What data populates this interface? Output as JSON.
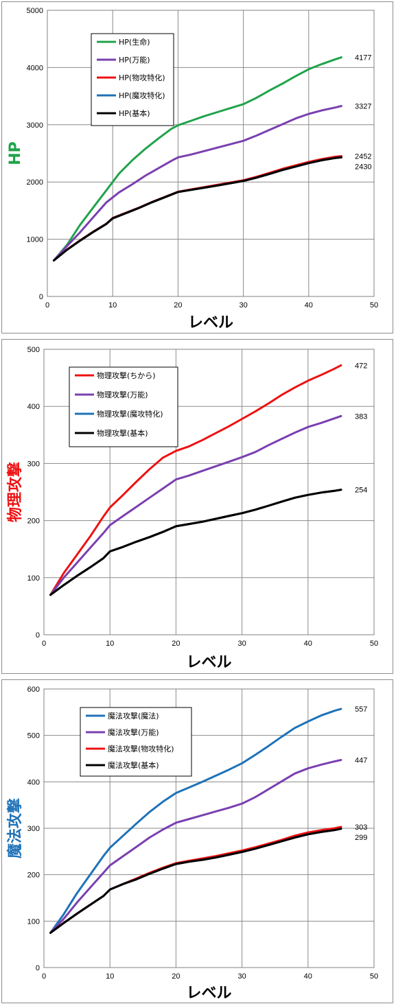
{
  "chart_data": [
    {
      "type": "line",
      "ylabel": "HP",
      "ylabel_color": "#1fa34a",
      "xlabel": "レベル",
      "xlim": [
        0,
        50
      ],
      "ylim": [
        0,
        5000
      ],
      "xticks": [
        0,
        10,
        20,
        30,
        40,
        50
      ],
      "yticks": [
        0,
        1000,
        2000,
        3000,
        4000,
        5000
      ],
      "grid": true,
      "legend": "top-left",
      "series": [
        {
          "name": "HP(生命)",
          "color": "#1fa34a",
          "end_label": "4177",
          "x": [
            1,
            3,
            5,
            7,
            9,
            11,
            13,
            15,
            17,
            19,
            20,
            22,
            24,
            26,
            28,
            30,
            32,
            34,
            36,
            38,
            40,
            42,
            44,
            45
          ],
          "y": [
            630,
            900,
            1250,
            1550,
            1850,
            2150,
            2380,
            2580,
            2760,
            2930,
            2990,
            3070,
            3150,
            3220,
            3290,
            3360,
            3470,
            3600,
            3720,
            3850,
            3970,
            4060,
            4140,
            4177
          ]
        },
        {
          "name": "HP(万能)",
          "color": "#7a3fb0",
          "end_label": "3327",
          "x": [
            1,
            3,
            5,
            7,
            9,
            11,
            13,
            15,
            17,
            19,
            20,
            22,
            24,
            26,
            28,
            30,
            32,
            34,
            36,
            38,
            40,
            42,
            44,
            45
          ],
          "y": [
            630,
            880,
            1120,
            1380,
            1640,
            1820,
            1960,
            2110,
            2240,
            2370,
            2430,
            2480,
            2540,
            2600,
            2660,
            2720,
            2810,
            2910,
            3010,
            3110,
            3190,
            3250,
            3300,
            3327
          ]
        },
        {
          "name": "HP(物攻特化)",
          "color": "#ee1111",
          "end_label": "2452",
          "x": [
            1,
            3,
            5,
            7,
            9,
            10,
            12,
            14,
            16,
            18,
            20,
            22,
            24,
            26,
            28,
            30,
            32,
            34,
            36,
            38,
            40,
            42,
            44,
            45
          ],
          "y": [
            630,
            820,
            980,
            1130,
            1270,
            1370,
            1460,
            1550,
            1650,
            1740,
            1830,
            1870,
            1910,
            1950,
            1990,
            2030,
            2090,
            2160,
            2230,
            2290,
            2350,
            2400,
            2440,
            2452
          ]
        },
        {
          "name": "HP(魔攻特化)",
          "color": "#1e72b8",
          "end_label": "",
          "x": [
            1,
            3,
            5,
            7,
            9,
            10,
            12,
            14,
            16,
            18,
            20,
            22,
            24,
            26,
            28,
            30,
            32,
            34,
            36,
            38,
            40,
            42,
            44,
            45
          ],
          "y": [
            630,
            815,
            975,
            1125,
            1265,
            1365,
            1455,
            1545,
            1645,
            1735,
            1825,
            1862,
            1900,
            1938,
            1978,
            2018,
            2075,
            2142,
            2210,
            2270,
            2330,
            2380,
            2418,
            2430
          ]
        },
        {
          "name": "HP(基本)",
          "color": "#000000",
          "end_label": "2430",
          "x": [
            1,
            3,
            5,
            7,
            9,
            10,
            12,
            14,
            16,
            18,
            20,
            22,
            24,
            26,
            28,
            30,
            32,
            34,
            36,
            38,
            40,
            42,
            44,
            45
          ],
          "y": [
            630,
            815,
            975,
            1125,
            1265,
            1365,
            1455,
            1545,
            1645,
            1735,
            1825,
            1862,
            1900,
            1938,
            1978,
            2018,
            2075,
            2142,
            2210,
            2270,
            2330,
            2380,
            2418,
            2430
          ]
        }
      ]
    },
    {
      "type": "line",
      "ylabel": "物理攻撃",
      "ylabel_color": "#ee1111",
      "xlabel": "レベル",
      "xlim": [
        0,
        50
      ],
      "ylim": [
        0,
        500
      ],
      "xticks": [
        0,
        10,
        20,
        30,
        40,
        50
      ],
      "yticks": [
        0,
        100,
        200,
        300,
        400,
        500
      ],
      "grid": true,
      "legend": "top-left",
      "series": [
        {
          "name": "物理攻撃(ちから)",
          "color": "#ee1111",
          "end_label": "472",
          "x": [
            1,
            3,
            5,
            7,
            9,
            10,
            12,
            14,
            16,
            18,
            20,
            22,
            24,
            26,
            28,
            30,
            32,
            34,
            36,
            38,
            40,
            42,
            44,
            45
          ],
          "y": [
            70,
            108,
            140,
            172,
            207,
            223,
            245,
            268,
            290,
            310,
            322,
            330,
            341,
            353,
            365,
            378,
            391,
            405,
            420,
            433,
            445,
            455,
            466,
            472
          ]
        },
        {
          "name": "物理攻撃(万能)",
          "color": "#7a3fb0",
          "end_label": "383",
          "x": [
            1,
            3,
            5,
            7,
            9,
            10,
            12,
            14,
            16,
            18,
            20,
            22,
            24,
            26,
            28,
            30,
            32,
            34,
            36,
            38,
            40,
            42,
            44,
            45
          ],
          "y": [
            70,
            100,
            126,
            152,
            178,
            192,
            208,
            224,
            240,
            256,
            272,
            279,
            287,
            295,
            303,
            311,
            320,
            332,
            343,
            354,
            364,
            371,
            379,
            383
          ]
        },
        {
          "name": "物理攻撃(魔攻特化)",
          "color": "#1e72b8",
          "end_label": "",
          "x": [
            1,
            3,
            5,
            7,
            9,
            10,
            12,
            14,
            16,
            18,
            20,
            22,
            24,
            26,
            28,
            30,
            32,
            34,
            36,
            38,
            40,
            42,
            44,
            45
          ],
          "y": [
            70,
            87,
            103,
            118,
            134,
            146,
            154,
            163,
            171,
            180,
            190,
            194,
            198,
            203,
            208,
            213,
            219,
            226,
            233,
            240,
            245,
            249,
            252,
            254
          ]
        },
        {
          "name": "物理攻撃(基本)",
          "color": "#000000",
          "end_label": "254",
          "x": [
            1,
            3,
            5,
            7,
            9,
            10,
            12,
            14,
            16,
            18,
            20,
            22,
            24,
            26,
            28,
            30,
            32,
            34,
            36,
            38,
            40,
            42,
            44,
            45
          ],
          "y": [
            70,
            87,
            103,
            118,
            134,
            146,
            154,
            163,
            171,
            180,
            190,
            194,
            198,
            203,
            208,
            213,
            219,
            226,
            233,
            240,
            245,
            249,
            252,
            254
          ]
        }
      ]
    },
    {
      "type": "line",
      "ylabel": "魔法攻撃",
      "ylabel_color": "#1e72b8",
      "xlabel": "レベル",
      "xlim": [
        0,
        50
      ],
      "ylim": [
        0,
        600
      ],
      "xticks": [
        0,
        10,
        20,
        30,
        40,
        50
      ],
      "yticks": [
        0,
        100,
        200,
        300,
        400,
        500,
        600
      ],
      "grid": true,
      "legend": "top-left",
      "series": [
        {
          "name": "魔法攻撃(魔法)",
          "color": "#1e72b8",
          "end_label": "557",
          "x": [
            1,
            3,
            5,
            7,
            9,
            10,
            12,
            14,
            16,
            18,
            20,
            22,
            24,
            26,
            28,
            30,
            32,
            34,
            36,
            38,
            40,
            42,
            44,
            45
          ],
          "y": [
            75,
            115,
            160,
            200,
            240,
            258,
            284,
            310,
            335,
            357,
            376,
            388,
            400,
            413,
            426,
            440,
            458,
            477,
            497,
            516,
            530,
            543,
            553,
            557
          ]
        },
        {
          "name": "魔法攻撃(万能)",
          "color": "#7a3fb0",
          "end_label": "447",
          "x": [
            1,
            3,
            5,
            7,
            9,
            10,
            12,
            14,
            16,
            18,
            20,
            22,
            24,
            26,
            28,
            30,
            32,
            34,
            36,
            38,
            40,
            42,
            44,
            45
          ],
          "y": [
            75,
            105,
            140,
            172,
            204,
            220,
            240,
            260,
            280,
            297,
            312,
            320,
            328,
            336,
            344,
            353,
            367,
            384,
            401,
            418,
            429,
            437,
            444,
            447
          ]
        },
        {
          "name": "魔法攻撃(物攻特化)",
          "color": "#ee1111",
          "end_label": "303",
          "x": [
            1,
            3,
            5,
            7,
            9,
            10,
            12,
            14,
            16,
            18,
            20,
            22,
            24,
            26,
            28,
            30,
            32,
            34,
            36,
            38,
            40,
            42,
            44,
            45
          ],
          "y": [
            75,
            96,
            116,
            135,
            154,
            168,
            180,
            192,
            204,
            215,
            225,
            230,
            235,
            240,
            246,
            252,
            259,
            267,
            275,
            284,
            291,
            296,
            300,
            303
          ]
        },
        {
          "name": "魔法攻撃(基本)",
          "color": "#000000",
          "end_label": "299",
          "x": [
            1,
            3,
            5,
            7,
            9,
            10,
            12,
            14,
            16,
            18,
            20,
            22,
            24,
            26,
            28,
            30,
            32,
            34,
            36,
            38,
            40,
            42,
            44,
            45
          ],
          "y": [
            75,
            96,
            116,
            135,
            154,
            168,
            180,
            190,
            202,
            213,
            223,
            228,
            232,
            237,
            243,
            249,
            256,
            264,
            272,
            280,
            287,
            292,
            296,
            299
          ]
        }
      ]
    }
  ]
}
